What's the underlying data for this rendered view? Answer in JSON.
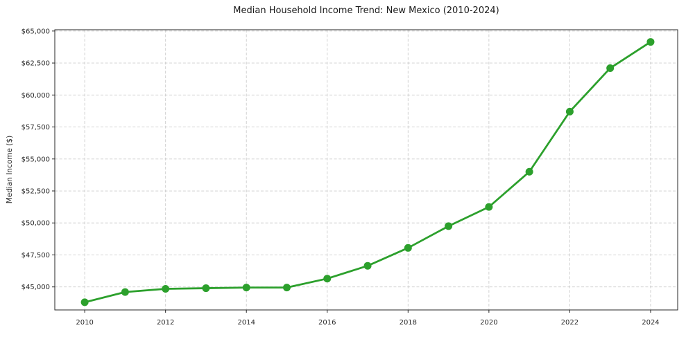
{
  "chart_data": {
    "type": "line",
    "title": "Median Household Income Trend: New Mexico (2010-2024)",
    "xlabel": "",
    "ylabel": "Median Income ($)",
    "x": [
      2010,
      2011,
      2012,
      2013,
      2014,
      2015,
      2016,
      2017,
      2018,
      2019,
      2020,
      2021,
      2022,
      2023,
      2024
    ],
    "values": [
      43800,
      44600,
      44850,
      44900,
      44950,
      44950,
      45650,
      46650,
      48050,
      49750,
      51250,
      54000,
      58700,
      62100,
      64150
    ],
    "series_name": "Median household income",
    "line_color": "#2ca02c",
    "marker": "circle",
    "marker_color": "#2ca02c",
    "xlim": [
      2009.26,
      2024.67
    ],
    "ylim": [
      43200,
      65100
    ],
    "xticks": {
      "values": [
        2010,
        2012,
        2014,
        2016,
        2018,
        2020,
        2022,
        2024
      ],
      "labels": [
        "2010",
        "2012",
        "2014",
        "2016",
        "2018",
        "2020",
        "2022",
        "2024"
      ]
    },
    "yticks": {
      "values": [
        45000,
        47500,
        50000,
        52500,
        55000,
        57500,
        60000,
        62500,
        65000
      ],
      "labels": [
        "$45,000",
        "$47,500",
        "$50,000",
        "$52,500",
        "$55,000",
        "$57,500",
        "$60,000",
        "$62,500",
        "$65,000"
      ]
    },
    "grid": "dashed",
    "grid_color": "#cccccc",
    "spine_color": "#262626",
    "background_color": "#ffffff",
    "legend": "none"
  }
}
